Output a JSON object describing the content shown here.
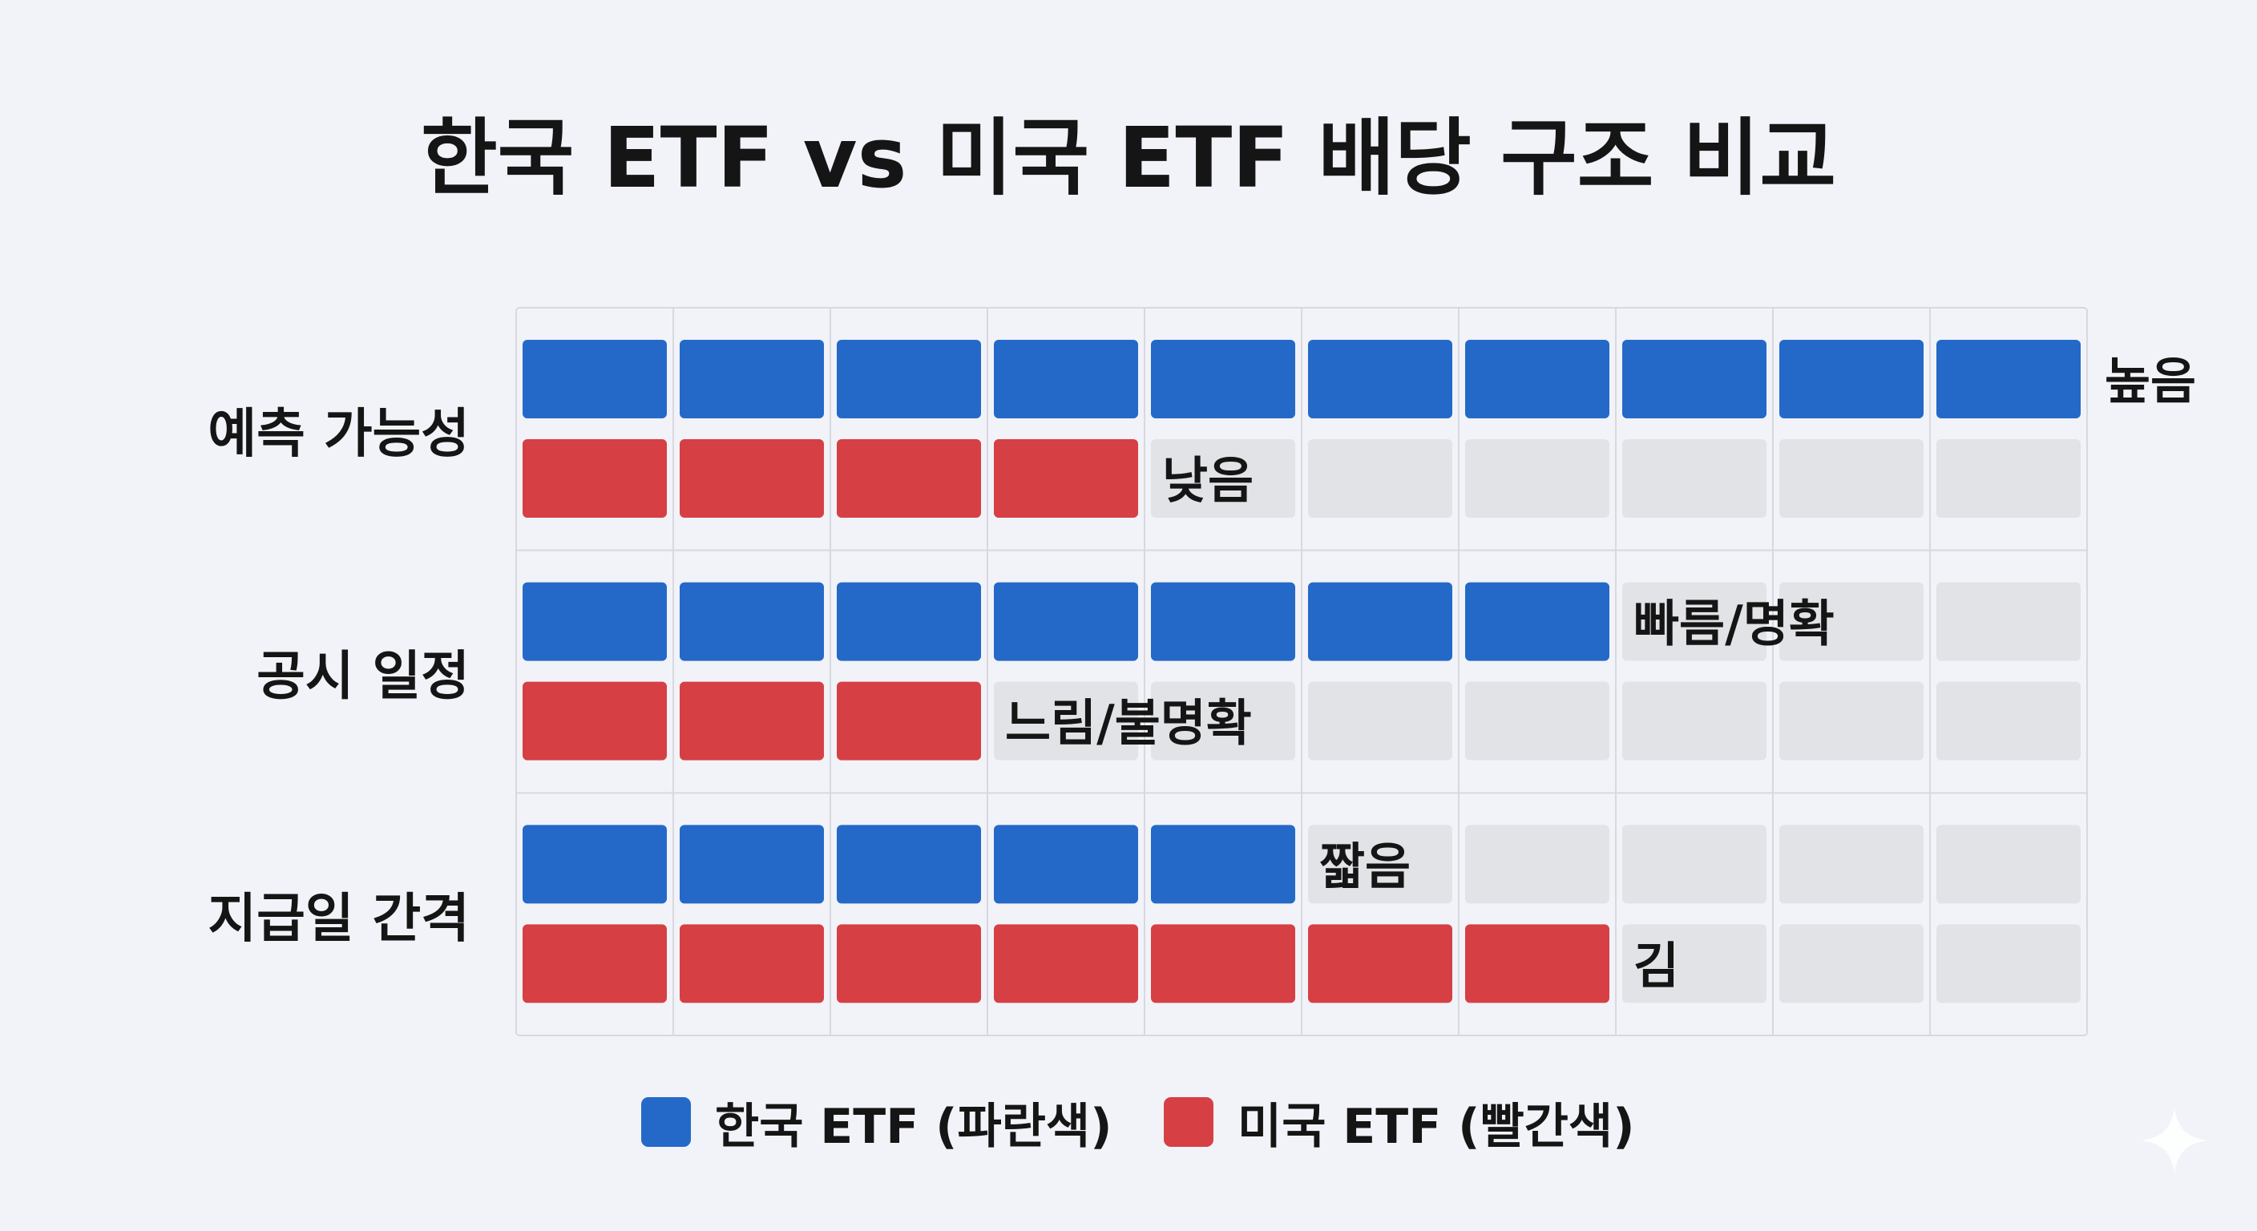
{
  "title": "한국 ETF vs 미국 ETF 배당 구조 비교",
  "chart_data": {
    "type": "bar",
    "orientation": "horizontal",
    "scale_max": 10,
    "grid": true,
    "categories": [
      "예측 가능성",
      "공시 일정",
      "지급일 간격"
    ],
    "series": [
      {
        "name": "한국 ETF (파란색)",
        "color": "#2469c8",
        "values": [
          10,
          7,
          5
        ],
        "value_labels": [
          "높음",
          "빠름/명확",
          "짧음"
        ]
      },
      {
        "name": "미국 ETF (빨간색)",
        "color": "#d64044",
        "values": [
          4,
          3,
          7
        ],
        "value_labels": [
          "낮음",
          "느림/불명확",
          "김"
        ]
      }
    ],
    "empty_color": "#e2e3e7",
    "legend_position": "bottom"
  },
  "legend": {
    "korea": {
      "label": "한국 ETF (파란색)",
      "color": "#2469c8"
    },
    "us": {
      "label": "미국 ETF (빨간색)",
      "color": "#d64044"
    }
  }
}
